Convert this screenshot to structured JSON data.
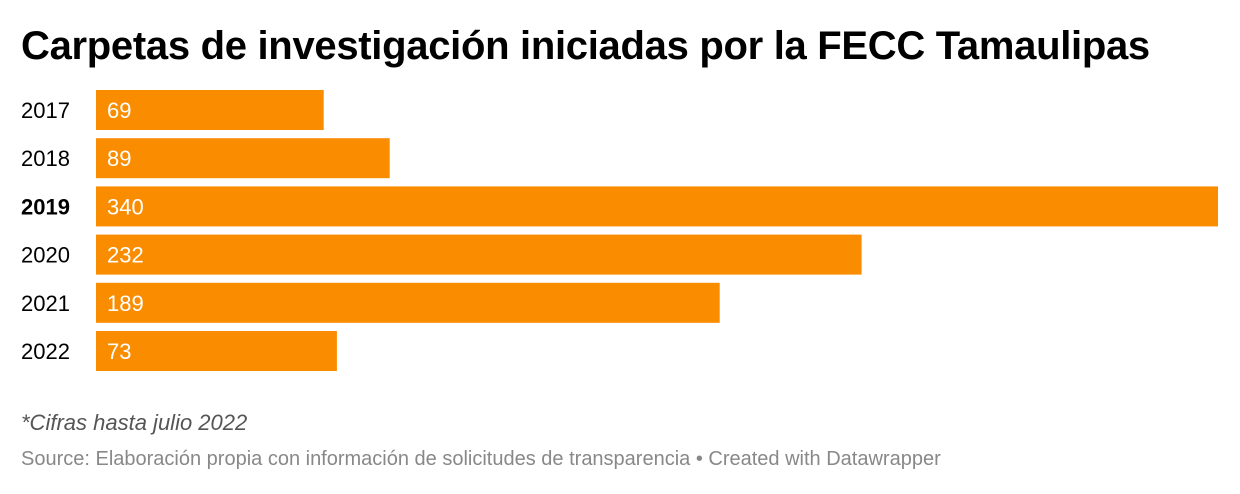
{
  "chart_data": {
    "type": "bar",
    "orientation": "horizontal",
    "title": "Carpetas de investigación iniciadas por la FECC Tamaulipas",
    "categories": [
      "2017",
      "2018",
      "2019",
      "2020",
      "2021",
      "2022"
    ],
    "values": [
      69,
      89,
      340,
      232,
      189,
      73
    ],
    "highlighted_category": "2019",
    "xlim": [
      0,
      340
    ],
    "grid": false,
    "legend": "none",
    "bar_color": "#fa8c00",
    "value_label_color": "#ffffff"
  },
  "notes": {
    "footnote": "*Cifras hasta julio 2022",
    "source": "Source: Elaboración propia con información de solicitudes de transparencia • Created with Datawrapper"
  }
}
